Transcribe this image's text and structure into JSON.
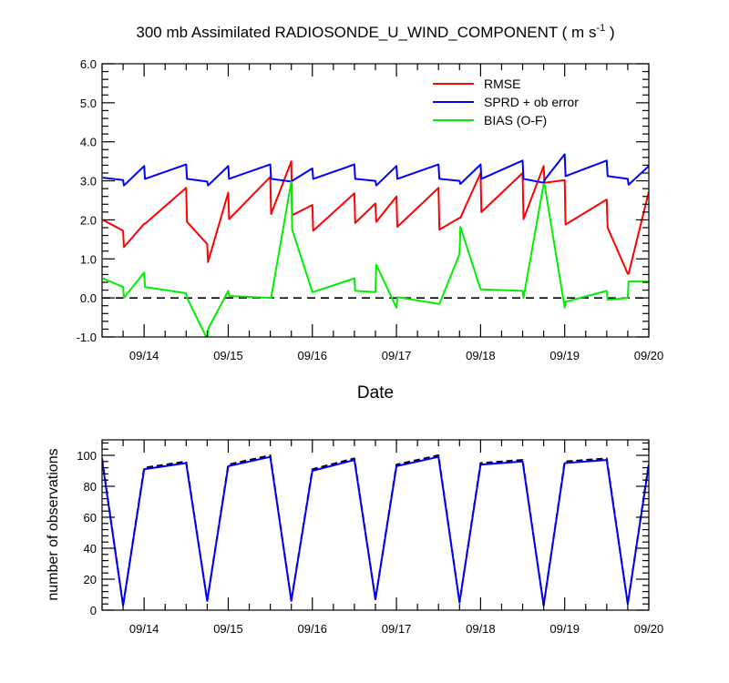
{
  "chart_data": [
    {
      "type": "line",
      "title": "300 mb Assimilated RADIOSONDE_U_WIND_COMPONENT ( m s",
      "title_unit_exponent": "-1",
      "title_suffix": " )",
      "xlabel": "Date",
      "ylabel": "",
      "x_tick_labels": [
        "09/14",
        "09/15",
        "09/16",
        "09/17",
        "09/18",
        "09/19",
        "09/20"
      ],
      "x_range_days": [
        13.5,
        20.0
      ],
      "ylim": [
        -1.0,
        6.0
      ],
      "y_tick_labels": [
        "-1.0",
        "0.0",
        "1.0",
        "2.0",
        "3.0",
        "4.0",
        "5.0",
        "6.0"
      ],
      "legend_position": "top-right",
      "zero_line": "dashed",
      "series": [
        {
          "name": "RMSE",
          "color": "#ff0000",
          "x": [
            13.51,
            13.75,
            13.76,
            14.0,
            14.01,
            14.5,
            14.51,
            14.75,
            14.76,
            15.0,
            15.01,
            15.5,
            15.51,
            15.75,
            15.76,
            16.0,
            16.01,
            16.5,
            16.51,
            16.75,
            16.76,
            17.0,
            17.01,
            17.5,
            17.51,
            17.75,
            17.76,
            18.0,
            18.01,
            18.5,
            18.51,
            18.75,
            18.76,
            19.0,
            19.01,
            19.5,
            19.51,
            19.75,
            19.76,
            20.0
          ],
          "values": [
            2.0,
            1.72,
            1.3,
            1.9,
            1.9,
            2.82,
            1.95,
            1.38,
            0.92,
            2.7,
            2.02,
            3.1,
            2.15,
            3.5,
            2.12,
            2.38,
            1.72,
            2.68,
            1.92,
            2.42,
            1.95,
            2.6,
            1.82,
            2.82,
            1.75,
            2.05,
            2.05,
            3.2,
            2.2,
            3.2,
            2.02,
            3.38,
            2.95,
            3.02,
            1.88,
            2.52,
            1.8,
            0.62,
            0.62,
            2.72
          ]
        },
        {
          "name": "SPRD + ob error",
          "color": "#0000ff",
          "x": [
            13.51,
            13.75,
            13.76,
            14.0,
            14.01,
            14.5,
            14.51,
            14.75,
            14.76,
            15.0,
            15.01,
            15.5,
            15.51,
            15.75,
            15.76,
            16.0,
            16.01,
            16.5,
            16.51,
            16.75,
            16.76,
            17.0,
            17.01,
            17.5,
            17.51,
            17.75,
            17.76,
            18.0,
            18.01,
            18.5,
            18.51,
            18.75,
            18.76,
            19.0,
            19.01,
            19.5,
            19.51,
            19.75,
            19.76,
            20.0
          ],
          "values": [
            3.08,
            3.02,
            2.88,
            3.38,
            3.05,
            3.42,
            3.05,
            2.98,
            2.88,
            3.38,
            3.05,
            3.42,
            3.05,
            2.98,
            3.0,
            3.32,
            3.05,
            3.42,
            3.05,
            3.0,
            2.88,
            3.38,
            3.05,
            3.42,
            3.05,
            3.0,
            2.92,
            3.42,
            3.05,
            3.52,
            3.05,
            2.95,
            3.02,
            3.68,
            3.12,
            3.52,
            3.12,
            3.05,
            2.9,
            3.38
          ]
        },
        {
          "name": "BIAS (O-F)",
          "color": "#00ee00",
          "x": [
            13.51,
            13.75,
            13.76,
            14.0,
            14.01,
            14.5,
            14.51,
            14.75,
            14.76,
            15.0,
            15.01,
            15.5,
            15.51,
            15.75,
            15.76,
            16.0,
            16.01,
            16.5,
            16.51,
            16.75,
            16.76,
            17.0,
            17.01,
            17.5,
            17.51,
            17.75,
            17.76,
            18.0,
            18.01,
            18.5,
            18.51,
            18.75,
            18.76,
            19.0,
            19.01,
            19.5,
            19.51,
            19.75,
            19.76,
            20.0
          ],
          "values": [
            0.5,
            0.28,
            0.0,
            0.65,
            0.28,
            0.12,
            0.0,
            -1.05,
            -0.8,
            0.18,
            0.05,
            0.0,
            0.0,
            2.98,
            1.75,
            0.15,
            0.15,
            0.5,
            0.18,
            0.15,
            0.85,
            -0.25,
            0.02,
            -0.15,
            -0.15,
            1.12,
            1.82,
            0.22,
            0.22,
            0.18,
            0.0,
            2.92,
            2.92,
            -0.25,
            -0.1,
            0.18,
            -0.05,
            0.0,
            0.42,
            0.42
          ]
        }
      ]
    },
    {
      "type": "line",
      "title": "",
      "xlabel": "",
      "ylabel": "number of observations",
      "x_tick_labels": [
        "09/14",
        "09/15",
        "09/16",
        "09/17",
        "09/18",
        "09/19",
        "09/20"
      ],
      "x_range_days": [
        13.5,
        20.0
      ],
      "ylim": [
        0,
        110
      ],
      "y_tick_labels": [
        "0",
        "20",
        "40",
        "60",
        "80",
        "100"
      ],
      "series": [
        {
          "style": "dashed",
          "color": "#000000",
          "x": [
            13.5,
            13.75,
            14.0,
            14.5,
            14.75,
            15.0,
            15.5,
            15.75,
            16.0,
            16.5,
            16.75,
            17.0,
            17.5,
            17.75,
            18.0,
            18.5,
            18.75,
            19.0,
            19.5,
            19.75,
            20.0
          ],
          "values": [
            98,
            3,
            92,
            96,
            6,
            94,
            100,
            6,
            91,
            98,
            7,
            94,
            100,
            5,
            95,
            97,
            3,
            96,
            98,
            4,
            95
          ]
        },
        {
          "style": "solid",
          "color": "#0000ff",
          "x": [
            13.5,
            13.75,
            14.0,
            14.5,
            14.75,
            15.0,
            15.5,
            15.75,
            16.0,
            16.5,
            16.75,
            17.0,
            17.5,
            17.75,
            18.0,
            18.5,
            18.75,
            19.0,
            19.5,
            19.75,
            20.0
          ],
          "values": [
            97,
            3,
            91,
            95,
            6,
            93,
            99,
            6,
            90,
            97,
            7,
            93,
            99,
            5,
            94,
            96,
            3,
            95,
            97,
            4,
            94
          ]
        }
      ]
    }
  ]
}
